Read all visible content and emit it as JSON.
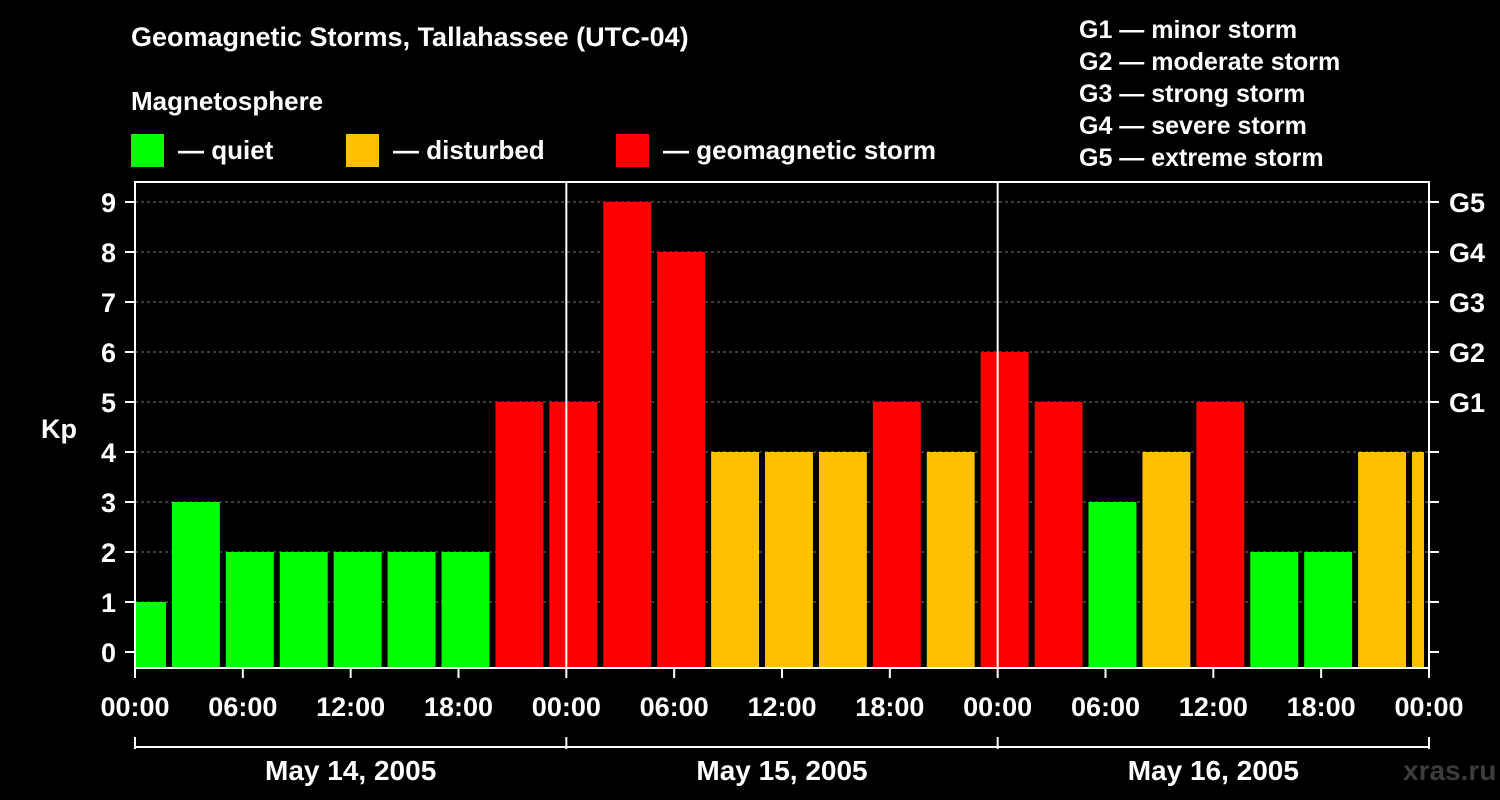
{
  "title": "Geomagnetic Storms, Tallahassee (UTC-04)",
  "subtitle": "Magnetosphere",
  "legend": [
    {
      "label": "— quiet",
      "color": "#00ff00"
    },
    {
      "label": "— disturbed",
      "color": "#ffc000"
    },
    {
      "label": "— geomagnetic storm",
      "color": "#ff0000"
    }
  ],
  "g_scale": [
    "G1 — minor storm",
    "G2 — moderate storm",
    "G3 — strong storm",
    "G4 — severe storm",
    "G5 — extreme storm"
  ],
  "watermark": "xras.ru",
  "chart_data": {
    "type": "bar",
    "ylabel": "Kp",
    "ylim": [
      0,
      9
    ],
    "yticks": [
      0,
      1,
      2,
      3,
      4,
      5,
      6,
      7,
      8,
      9
    ],
    "right_labels": [
      {
        "value": 5,
        "label": "G1"
      },
      {
        "value": 6,
        "label": "G2"
      },
      {
        "value": 7,
        "label": "G3"
      },
      {
        "value": 8,
        "label": "G4"
      },
      {
        "value": 9,
        "label": "G5"
      }
    ],
    "xlim_hours": [
      0,
      72
    ],
    "xticks": [
      {
        "hour": 0,
        "label": "00:00"
      },
      {
        "hour": 6,
        "label": "06:00"
      },
      {
        "hour": 12,
        "label": "12:00"
      },
      {
        "hour": 18,
        "label": "18:00"
      },
      {
        "hour": 24,
        "label": "00:00"
      },
      {
        "hour": 30,
        "label": "06:00"
      },
      {
        "hour": 36,
        "label": "12:00"
      },
      {
        "hour": 42,
        "label": "18:00"
      },
      {
        "hour": 48,
        "label": "00:00"
      },
      {
        "hour": 54,
        "label": "06:00"
      },
      {
        "hour": 60,
        "label": "12:00"
      },
      {
        "hour": 66,
        "label": "18:00"
      },
      {
        "hour": 72,
        "label": "00:00"
      }
    ],
    "days": [
      {
        "label": "May 14, 2005",
        "start": 0,
        "end": 24
      },
      {
        "label": "May 15, 2005",
        "start": 24,
        "end": 48
      },
      {
        "label": "May 16, 2005",
        "start": 48,
        "end": 72
      }
    ],
    "colors": {
      "quiet": "#00ff00",
      "disturbed": "#ffc000",
      "storm": "#ff0000"
    },
    "bars": [
      {
        "start": 0,
        "end": 2,
        "kp": 1,
        "level": "quiet"
      },
      {
        "start": 2,
        "end": 5,
        "kp": 3,
        "level": "quiet"
      },
      {
        "start": 5,
        "end": 8,
        "kp": 2,
        "level": "quiet"
      },
      {
        "start": 8,
        "end": 11,
        "kp": 2,
        "level": "quiet"
      },
      {
        "start": 11,
        "end": 14,
        "kp": 2,
        "level": "quiet"
      },
      {
        "start": 14,
        "end": 17,
        "kp": 2,
        "level": "quiet"
      },
      {
        "start": 17,
        "end": 20,
        "kp": 2,
        "level": "quiet"
      },
      {
        "start": 20,
        "end": 23,
        "kp": 5,
        "level": "storm"
      },
      {
        "start": 23,
        "end": 26,
        "kp": 5,
        "level": "storm"
      },
      {
        "start": 26,
        "end": 29,
        "kp": 9,
        "level": "storm"
      },
      {
        "start": 29,
        "end": 32,
        "kp": 8,
        "level": "storm"
      },
      {
        "start": 32,
        "end": 35,
        "kp": 4,
        "level": "disturbed"
      },
      {
        "start": 35,
        "end": 38,
        "kp": 4,
        "level": "disturbed"
      },
      {
        "start": 38,
        "end": 41,
        "kp": 4,
        "level": "disturbed"
      },
      {
        "start": 41,
        "end": 44,
        "kp": 5,
        "level": "storm"
      },
      {
        "start": 44,
        "end": 47,
        "kp": 4,
        "level": "disturbed"
      },
      {
        "start": 47,
        "end": 50,
        "kp": 6,
        "level": "storm"
      },
      {
        "start": 50,
        "end": 53,
        "kp": 5,
        "level": "storm"
      },
      {
        "start": 53,
        "end": 56,
        "kp": 3,
        "level": "quiet"
      },
      {
        "start": 56,
        "end": 59,
        "kp": 4,
        "level": "disturbed"
      },
      {
        "start": 59,
        "end": 62,
        "kp": 5,
        "level": "storm"
      },
      {
        "start": 62,
        "end": 65,
        "kp": 2,
        "level": "quiet"
      },
      {
        "start": 65,
        "end": 68,
        "kp": 2,
        "level": "quiet"
      },
      {
        "start": 68,
        "end": 71,
        "kp": 4,
        "level": "disturbed"
      },
      {
        "start": 71,
        "end": 72,
        "kp": 4,
        "level": "disturbed"
      }
    ]
  }
}
